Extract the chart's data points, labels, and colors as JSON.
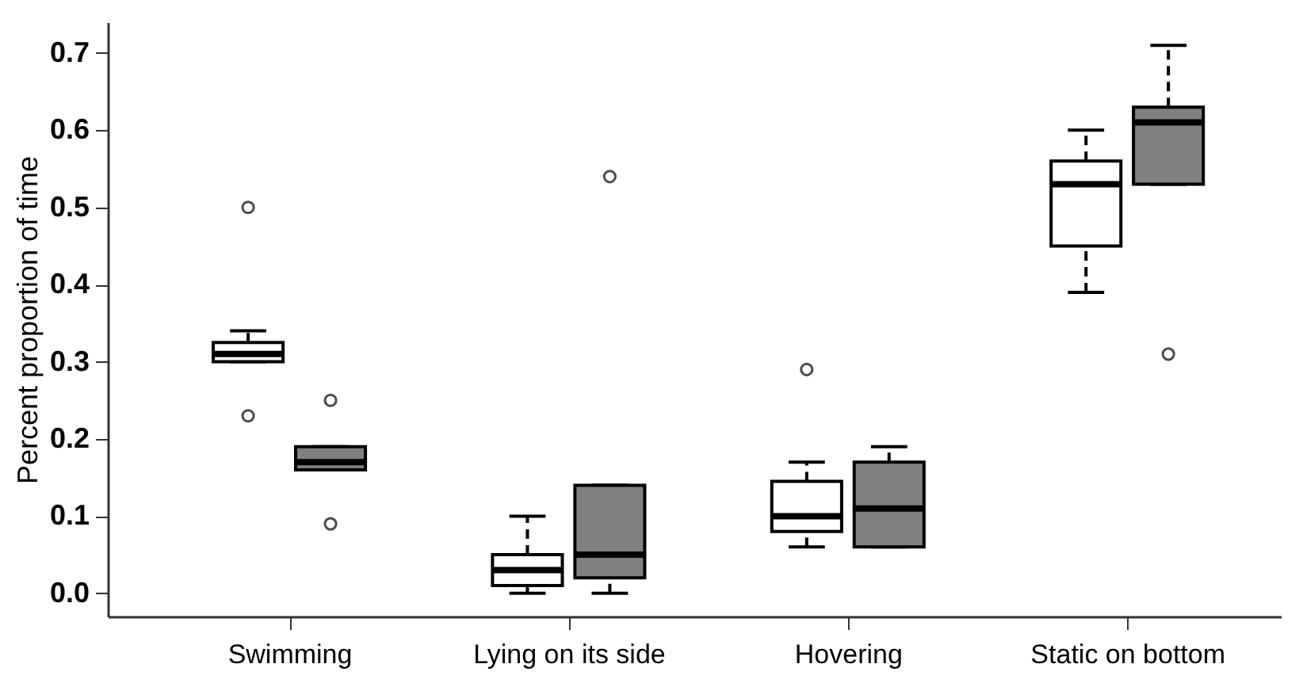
{
  "chart_data": {
    "type": "box",
    "ylabel": "Percent proportion of time",
    "categories": [
      "Swimming",
      "Lying on its side",
      "Hovering",
      "Static on bottom"
    ],
    "ylim": [
      -0.03,
      0.74
    ],
    "yticks": [
      {
        "value": 0,
        "label": "0.0"
      },
      0.1,
      0.2,
      0.3,
      0.4,
      0.5,
      0.6,
      0.7
    ],
    "grid": false,
    "series": [
      {
        "color": "#ffffff",
        "boxes": [
          {
            "low": 0.3,
            "q1": 0.3,
            "median": 0.31,
            "q3": 0.325,
            "high": 0.34,
            "outliers": [
              0.5,
              0.23
            ]
          },
          {
            "low": 0.0,
            "q1": 0.01,
            "median": 0.03,
            "q3": 0.05,
            "high": 0.1
          },
          {
            "low": 0.06,
            "q1": 0.08,
            "median": 0.1,
            "q3": 0.145,
            "high": 0.17,
            "outliers": [
              0.29
            ]
          },
          {
            "low": 0.39,
            "q1": 0.45,
            "median": 0.53,
            "q3": 0.56,
            "high": 0.6
          }
        ]
      },
      {
        "color": "#808080",
        "boxes": [
          {
            "low": 0.16,
            "q1": 0.16,
            "median": 0.17,
            "q3": 0.19,
            "high": 0.19,
            "outliers": [
              0.25,
              0.09
            ]
          },
          {
            "low": 0.0,
            "q1": 0.02,
            "median": 0.05,
            "q3": 0.14,
            "high": 0.14,
            "outliers": [
              0.54
            ]
          },
          {
            "low": 0.06,
            "q1": 0.06,
            "median": 0.11,
            "q3": 0.17,
            "high": 0.19
          },
          {
            "low": 0.53,
            "q1": 0.53,
            "median": 0.61,
            "q3": 0.63,
            "high": 0.71,
            "outliers": [
              0.31
            ]
          }
        ]
      }
    ]
  }
}
